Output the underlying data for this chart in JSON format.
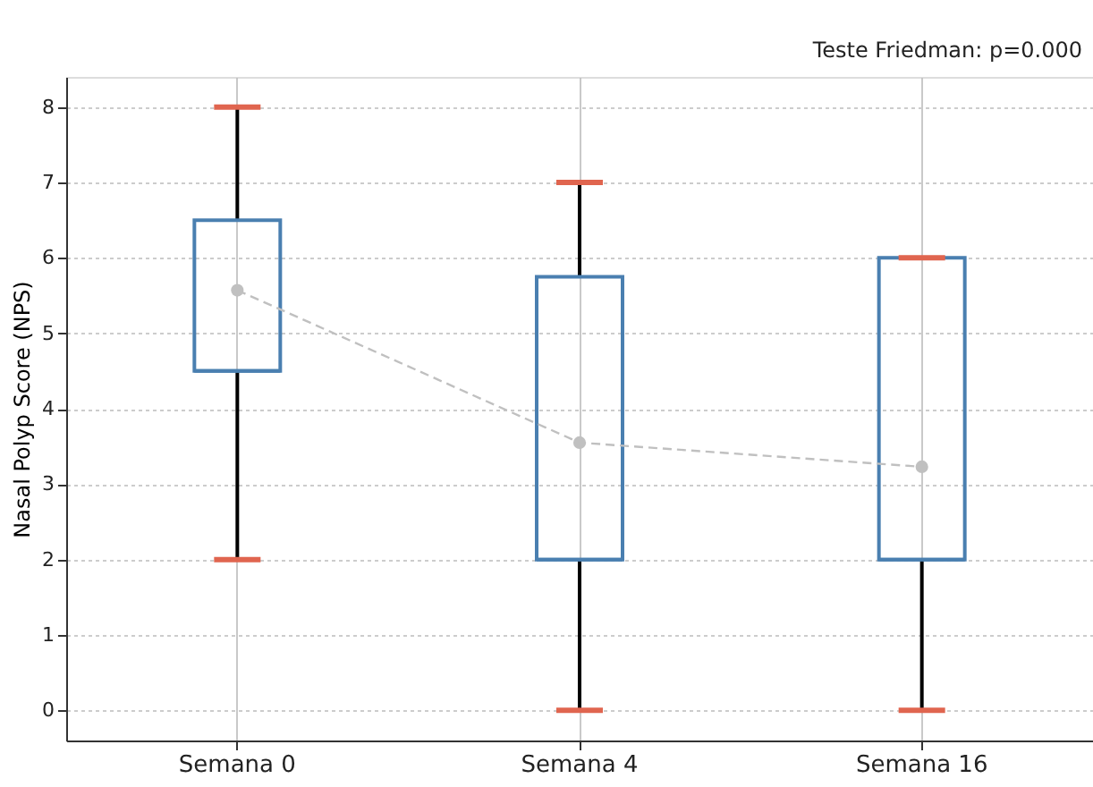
{
  "chart_data": {
    "type": "box",
    "ylabel": "Nasal Polyp Score (NPS)",
    "annotations": [
      "Teste Friedman: p=0.000"
    ],
    "categories": [
      "Semana 0",
      "Semana 4",
      "Semana 16"
    ],
    "ylim": [
      -0.4,
      8.4
    ],
    "yticks": [
      0,
      1,
      2,
      3,
      4,
      5,
      6,
      7,
      8
    ],
    "grid": true,
    "series": [
      {
        "type": "box",
        "color": "#4a7fb0",
        "boxes": [
          {
            "low": 2,
            "q1": 4.5,
            "median": 4.5,
            "q3": 6.5,
            "high": 8
          },
          {
            "low": 0,
            "q1": 2,
            "median": 2,
            "q3": 5.75,
            "high": 7
          },
          {
            "low": 0,
            "q1": 2,
            "median": 2,
            "q3": 6,
            "high": 6
          }
        ]
      },
      {
        "type": "line",
        "color": "#c0c0c0",
        "values": [
          5.57,
          3.55,
          3.23
        ],
        "marker": "circle",
        "line_style": "dashed"
      }
    ]
  }
}
